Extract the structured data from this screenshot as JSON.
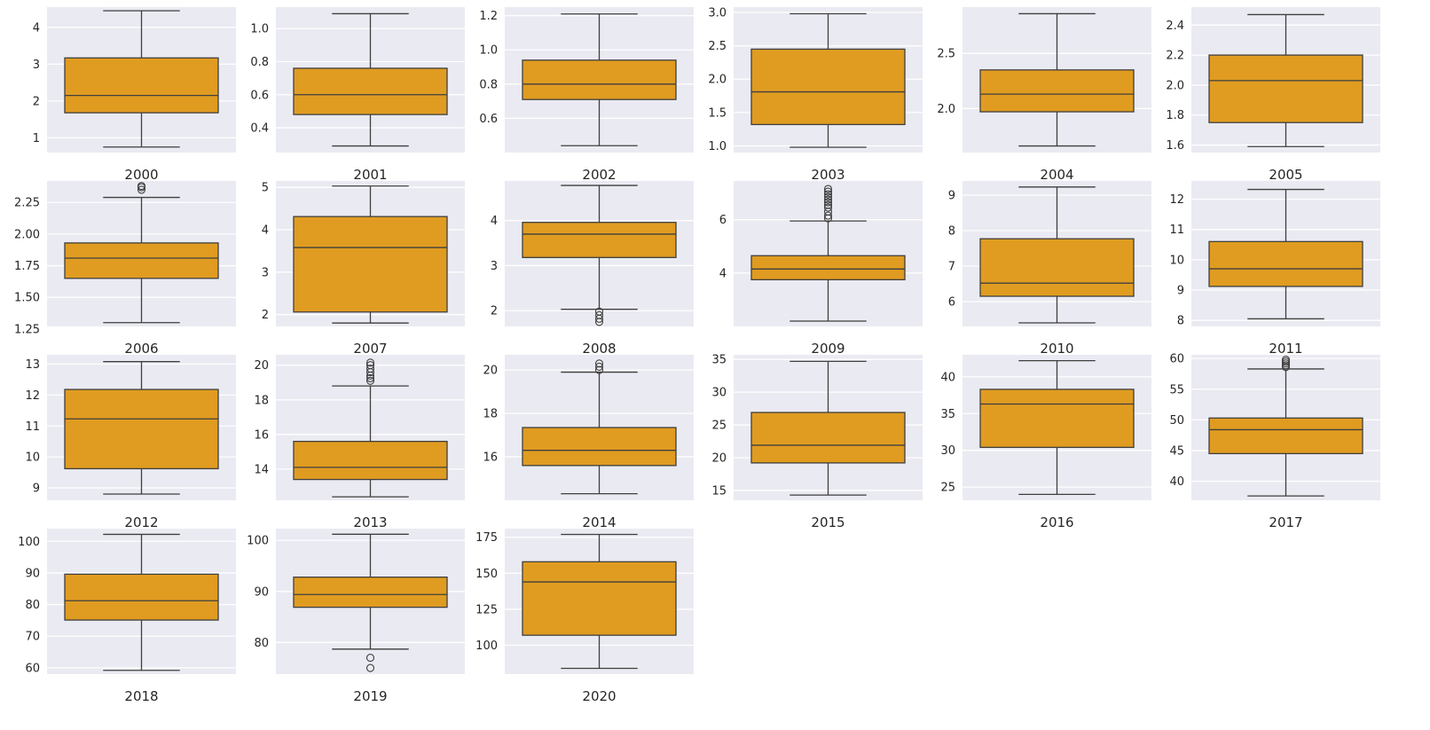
{
  "chart_data": {
    "type": "box",
    "box_color": "#e09c21",
    "line_color": "#3f3f3f",
    "background_color": "#eaeaf2",
    "grid": true,
    "panels": [
      {
        "label": "2000",
        "ylim": [
          0.6,
          4.55
        ],
        "yticks": [
          1,
          2,
          3,
          4
        ],
        "tick_labels": [
          "1",
          "2",
          "3",
          "4"
        ],
        "whislo": 0.75,
        "q1": 1.68,
        "med": 2.15,
        "q3": 3.17,
        "whishi": 4.45,
        "fliers": []
      },
      {
        "label": "2001",
        "ylim": [
          0.25,
          1.13
        ],
        "yticks": [
          0.4,
          0.6,
          0.8,
          1.0
        ],
        "tick_labels": [
          "0.4",
          "0.6",
          "0.8",
          "1.0"
        ],
        "whislo": 0.29,
        "q1": 0.48,
        "med": 0.6,
        "q3": 0.76,
        "whishi": 1.09,
        "fliers": []
      },
      {
        "label": "2002",
        "ylim": [
          0.4,
          1.25
        ],
        "yticks": [
          0.6,
          0.8,
          1.0,
          1.2
        ],
        "tick_labels": [
          "0.6",
          "0.8",
          "1.0",
          "1.2"
        ],
        "whislo": 0.44,
        "q1": 0.71,
        "med": 0.8,
        "q3": 0.94,
        "whishi": 1.21,
        "fliers": []
      },
      {
        "label": "2003",
        "ylim": [
          0.9,
          3.08
        ],
        "yticks": [
          1.0,
          1.5,
          2.0,
          2.5,
          3.0
        ],
        "tick_labels": [
          "1.0",
          "1.5",
          "2.0",
          "2.5",
          "3.0"
        ],
        "whislo": 0.98,
        "q1": 1.32,
        "med": 1.81,
        "q3": 2.45,
        "whishi": 2.98,
        "fliers": []
      },
      {
        "label": "2004",
        "ylim": [
          1.6,
          2.92
        ],
        "yticks": [
          2.0,
          2.5
        ],
        "tick_labels": [
          "2.0",
          "2.5"
        ],
        "whislo": 1.66,
        "q1": 1.97,
        "med": 2.13,
        "q3": 2.35,
        "whishi": 2.86,
        "fliers": []
      },
      {
        "label": "2005",
        "ylim": [
          1.55,
          2.52
        ],
        "yticks": [
          1.6,
          1.8,
          2.0,
          2.2,
          2.4
        ],
        "tick_labels": [
          "1.6",
          "1.8",
          "2.0",
          "2.2",
          "2.4"
        ],
        "whislo": 1.59,
        "q1": 1.75,
        "med": 2.03,
        "q3": 2.2,
        "whishi": 2.47,
        "fliers": []
      },
      {
        "label": "2006",
        "ylim": [
          1.27,
          2.42
        ],
        "yticks": [
          1.25,
          1.5,
          1.75,
          2.0,
          2.25
        ],
        "tick_labels": [
          "1.25",
          "1.50",
          "1.75",
          "2.00",
          "2.25"
        ],
        "whislo": 1.3,
        "q1": 1.65,
        "med": 1.81,
        "q3": 1.93,
        "whishi": 2.29,
        "fliers": [
          2.35,
          2.37,
          2.38
        ]
      },
      {
        "label": "2007",
        "ylim": [
          1.72,
          5.15
        ],
        "yticks": [
          2,
          3,
          4,
          5
        ],
        "tick_labels": [
          "2",
          "3",
          "4",
          "5"
        ],
        "whislo": 1.8,
        "q1": 2.06,
        "med": 3.58,
        "q3": 4.31,
        "whishi": 5.03,
        "fliers": []
      },
      {
        "label": "2008",
        "ylim": [
          1.65,
          4.88
        ],
        "yticks": [
          2,
          3,
          4
        ],
        "tick_labels": [
          "2",
          "3",
          "4"
        ],
        "whislo": 2.03,
        "q1": 3.18,
        "med": 3.7,
        "q3": 3.96,
        "whishi": 4.78,
        "fliers": [
          1.75,
          1.82,
          1.9,
          1.98
        ]
      },
      {
        "label": "2009",
        "ylim": [
          2.0,
          7.45
        ],
        "yticks": [
          4,
          6
        ],
        "tick_labels": [
          "4",
          "6"
        ],
        "whislo": 2.2,
        "q1": 3.75,
        "med": 4.15,
        "q3": 4.65,
        "whishi": 5.95,
        "fliers": [
          6.05,
          6.15,
          6.3,
          6.45,
          6.55,
          6.65,
          6.75,
          6.85,
          6.95,
          7.05,
          7.15
        ]
      },
      {
        "label": "2010",
        "ylim": [
          5.3,
          9.4
        ],
        "yticks": [
          6,
          7,
          8,
          9
        ],
        "tick_labels": [
          "6",
          "7",
          "8",
          "9"
        ],
        "whislo": 5.4,
        "q1": 6.15,
        "med": 6.52,
        "q3": 7.77,
        "whishi": 9.23,
        "fliers": []
      },
      {
        "label": "2011",
        "ylim": [
          7.8,
          12.6
        ],
        "yticks": [
          8,
          9,
          10,
          11,
          12
        ],
        "tick_labels": [
          "8",
          "9",
          "10",
          "11",
          "12"
        ],
        "whislo": 8.05,
        "q1": 9.12,
        "med": 9.7,
        "q3": 10.6,
        "whishi": 12.32,
        "fliers": []
      },
      {
        "label": "2012",
        "ylim": [
          8.6,
          13.3
        ],
        "yticks": [
          9,
          10,
          11,
          12,
          13
        ],
        "tick_labels": [
          "9",
          "10",
          "11",
          "12",
          "13"
        ],
        "whislo": 8.8,
        "q1": 9.62,
        "med": 11.23,
        "q3": 12.18,
        "whishi": 13.08,
        "fliers": []
      },
      {
        "label": "2013",
        "ylim": [
          12.2,
          20.6
        ],
        "yticks": [
          14,
          16,
          18,
          20
        ],
        "tick_labels": [
          "14",
          "16",
          "18",
          "20"
        ],
        "whislo": 12.4,
        "q1": 13.4,
        "med": 14.1,
        "q3": 15.6,
        "whishi": 18.8,
        "fliers": [
          19.1,
          19.25,
          19.4,
          19.6,
          19.8,
          20.0,
          20.15
        ]
      },
      {
        "label": "2014",
        "ylim": [
          14.0,
          20.7
        ],
        "yticks": [
          16,
          18,
          20
        ],
        "tick_labels": [
          "16",
          "18",
          "20"
        ],
        "whislo": 14.3,
        "q1": 15.6,
        "med": 16.3,
        "q3": 17.35,
        "whishi": 19.9,
        "fliers": [
          20.0,
          20.15,
          20.3
        ]
      },
      {
        "label": "2015",
        "ylim": [
          13.5,
          35.7
        ],
        "yticks": [
          15,
          20,
          25,
          30,
          35
        ],
        "tick_labels": [
          "15",
          "20",
          "25",
          "30",
          "35"
        ],
        "whislo": 14.3,
        "q1": 19.2,
        "med": 21.9,
        "q3": 26.9,
        "whishi": 34.7,
        "fliers": []
      },
      {
        "label": "2016",
        "ylim": [
          23.2,
          43.0
        ],
        "yticks": [
          25,
          30,
          35,
          40
        ],
        "tick_labels": [
          "25",
          "30",
          "35",
          "40"
        ],
        "whislo": 24.0,
        "q1": 30.4,
        "med": 36.3,
        "q3": 38.3,
        "whishi": 42.2,
        "fliers": []
      },
      {
        "label": "2017",
        "ylim": [
          36.9,
          60.6
        ],
        "yticks": [
          40,
          45,
          50,
          55,
          60
        ],
        "tick_labels": [
          "40",
          "45",
          "50",
          "55",
          "60"
        ],
        "whislo": 37.6,
        "q1": 44.5,
        "med": 48.4,
        "q3": 50.3,
        "whishi": 58.3,
        "fliers": [
          58.6,
          58.9,
          59.2,
          59.5,
          59.8
        ]
      },
      {
        "label": "2018",
        "ylim": [
          58.0,
          104.0
        ],
        "yticks": [
          60,
          70,
          80,
          90,
          100
        ],
        "tick_labels": [
          "60",
          "70",
          "80",
          "90",
          "100"
        ],
        "whislo": 59.2,
        "q1": 75.1,
        "med": 81.2,
        "q3": 89.6,
        "whishi": 102.2,
        "fliers": []
      },
      {
        "label": "2019",
        "ylim": [
          73.8,
          102.3
        ],
        "yticks": [
          80,
          90,
          100
        ],
        "tick_labels": [
          "80",
          "90",
          "100"
        ],
        "whislo": 78.7,
        "q1": 86.9,
        "med": 89.4,
        "q3": 92.8,
        "whishi": 101.2,
        "fliers": [
          75.0,
          77.0
        ]
      },
      {
        "label": "2020",
        "ylim": [
          80.0,
          181.0
        ],
        "yticks": [
          100,
          125,
          150,
          175
        ],
        "tick_labels": [
          "100",
          "125",
          "150",
          "175"
        ],
        "whislo": 84.0,
        "q1": 107.0,
        "med": 144.0,
        "q3": 158.0,
        "whishi": 177.0,
        "fliers": []
      }
    ]
  }
}
